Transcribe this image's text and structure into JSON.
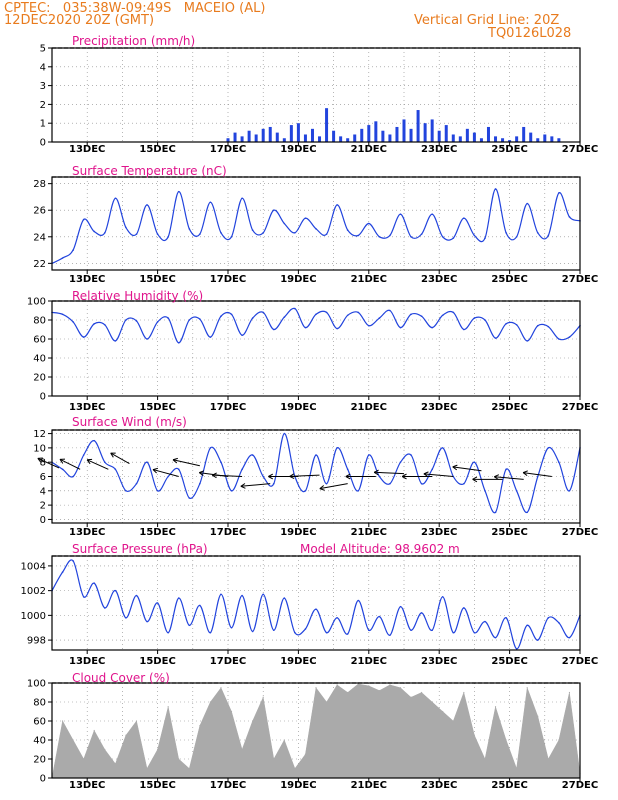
{
  "header": {
    "left_line1": "CPTEC:   035:38W-09:49S   MACEIO (AL)",
    "left_line2": "12DEC2020 20Z (GMT)",
    "right_line1": "Vertical Grid Line: 20Z",
    "right_line2": "TQ0126L028"
  },
  "colors": {
    "header": "#e87b1e",
    "title": "#e0148c",
    "line": "#2244dd",
    "cloud": "#aaaaaa",
    "grid": "#888888"
  },
  "chart_data": [
    {
      "id": "precip",
      "type": "bar",
      "title": "Precipitation (mm/h)",
      "ylim": [
        0,
        5
      ],
      "yticks": [
        "0",
        "1",
        "2",
        "3",
        "4",
        "5"
      ],
      "xticks": [
        "13DEC",
        "15DEC",
        "17DEC",
        "19DEC",
        "21DEC",
        "23DEC",
        "25DEC",
        "27DEC"
      ],
      "x": [
        5.0,
        5.2,
        5.4,
        5.6,
        5.8,
        6.0,
        6.2,
        6.4,
        6.6,
        6.8,
        7.0,
        7.2,
        7.4,
        7.6,
        7.8,
        8.0,
        8.2,
        8.4,
        8.6,
        8.8,
        9.0,
        9.2,
        9.4,
        9.6,
        9.8,
        10.0,
        10.2,
        10.4,
        10.6,
        10.8,
        11.0,
        11.2,
        11.4,
        11.6,
        11.8,
        12.0,
        12.2,
        12.4,
        12.6,
        12.8,
        13.0,
        13.2,
        13.4,
        13.6,
        13.8,
        14.0,
        14.2,
        14.4
      ],
      "values": [
        0.2,
        0.5,
        0.3,
        0.6,
        0.4,
        0.7,
        0.8,
        0.5,
        0.2,
        0.9,
        1.0,
        0.4,
        0.7,
        0.3,
        1.8,
        0.6,
        0.3,
        0.2,
        0.4,
        0.7,
        0.9,
        1.1,
        0.6,
        0.4,
        0.8,
        1.2,
        0.7,
        1.7,
        1.0,
        1.2,
        0.6,
        0.9,
        0.4,
        0.3,
        0.7,
        0.5,
        0.2,
        0.8,
        0.3,
        0.2,
        0.1,
        0.3,
        0.8,
        0.5,
        0.2,
        0.4,
        0.3,
        0.2
      ]
    },
    {
      "id": "temp",
      "type": "line",
      "title": "Surface Temperature (nC)",
      "ylim": [
        21.5,
        28.5
      ],
      "yticks": [
        "22",
        "24",
        "26",
        "28"
      ],
      "xticks": [
        "13DEC",
        "15DEC",
        "17DEC",
        "19DEC",
        "21DEC",
        "23DEC",
        "25DEC",
        "27DEC"
      ],
      "x": [
        0,
        0.3,
        0.6,
        0.9,
        1.2,
        1.5,
        1.8,
        2.1,
        2.4,
        2.7,
        3.0,
        3.3,
        3.6,
        3.9,
        4.2,
        4.5,
        4.8,
        5.1,
        5.4,
        5.7,
        6.0,
        6.3,
        6.6,
        6.9,
        7.2,
        7.5,
        7.8,
        8.1,
        8.4,
        8.7,
        9.0,
        9.3,
        9.6,
        9.9,
        10.2,
        10.5,
        10.8,
        11.1,
        11.4,
        11.7,
        12.0,
        12.3,
        12.6,
        12.9,
        13.2,
        13.5,
        13.8,
        14.1,
        14.4,
        14.7,
        15.0
      ],
      "values": [
        22.0,
        22.4,
        23.0,
        25.3,
        24.4,
        24.3,
        26.9,
        24.7,
        24.2,
        26.4,
        24.2,
        24.0,
        27.4,
        24.6,
        24.2,
        26.6,
        24.3,
        24.0,
        26.9,
        24.5,
        24.3,
        26.0,
        25.0,
        24.3,
        25.4,
        24.6,
        24.2,
        26.4,
        24.5,
        24.1,
        25.0,
        24.0,
        24.1,
        25.7,
        24.0,
        24.2,
        25.7,
        24.0,
        23.9,
        25.4,
        24.1,
        23.9,
        27.6,
        24.3,
        24.0,
        26.5,
        24.3,
        24.1,
        27.3,
        25.5,
        25.2
      ]
    },
    {
      "id": "rh",
      "type": "line",
      "title": "Relative Humidity (%)",
      "ylim": [
        0,
        100
      ],
      "yticks": [
        "0",
        "20",
        "40",
        "60",
        "80",
        "100"
      ],
      "xticks": [
        "13DEC",
        "15DEC",
        "17DEC",
        "19DEC",
        "21DEC",
        "23DEC",
        "25DEC",
        "27DEC"
      ],
      "x": [
        0,
        0.3,
        0.6,
        0.9,
        1.2,
        1.5,
        1.8,
        2.1,
        2.4,
        2.7,
        3.0,
        3.3,
        3.6,
        3.9,
        4.2,
        4.5,
        4.8,
        5.1,
        5.4,
        5.7,
        6.0,
        6.3,
        6.6,
        6.9,
        7.2,
        7.5,
        7.8,
        8.1,
        8.4,
        8.7,
        9.0,
        9.3,
        9.6,
        9.9,
        10.2,
        10.5,
        10.8,
        11.1,
        11.4,
        11.7,
        12.0,
        12.3,
        12.6,
        12.9,
        13.2,
        13.5,
        13.8,
        14.1,
        14.4,
        14.7,
        15.0
      ],
      "values": [
        88,
        86,
        78,
        62,
        76,
        75,
        58,
        80,
        79,
        60,
        78,
        82,
        56,
        80,
        81,
        62,
        84,
        86,
        64,
        82,
        88,
        70,
        83,
        92,
        72,
        86,
        88,
        71,
        85,
        88,
        74,
        82,
        90,
        72,
        86,
        84,
        72,
        85,
        88,
        70,
        82,
        80,
        61,
        76,
        75,
        58,
        74,
        73,
        60,
        62,
        74
      ]
    },
    {
      "id": "wind",
      "type": "line",
      "title": "Surface Wind (m/s)",
      "ylim": [
        -0.5,
        12.5
      ],
      "yticks": [
        "0",
        "2",
        "4",
        "6",
        "8",
        "10",
        "12"
      ],
      "xticks": [
        "13DEC",
        "15DEC",
        "17DEC",
        "19DEC",
        "21DEC",
        "23DEC",
        "25DEC",
        "27DEC"
      ],
      "x": [
        0,
        0.3,
        0.6,
        0.9,
        1.2,
        1.5,
        1.8,
        2.1,
        2.4,
        2.7,
        3.0,
        3.3,
        3.6,
        3.9,
        4.2,
        4.5,
        4.8,
        5.1,
        5.4,
        5.7,
        6.0,
        6.3,
        6.6,
        6.9,
        7.2,
        7.5,
        7.8,
        8.1,
        8.4,
        8.7,
        9.0,
        9.3,
        9.6,
        9.9,
        10.2,
        10.5,
        10.8,
        11.1,
        11.4,
        11.7,
        12.0,
        12.3,
        12.6,
        12.9,
        13.2,
        13.5,
        13.8,
        14.1,
        14.4,
        14.7,
        15.0
      ],
      "values": [
        8,
        7,
        6,
        9,
        11,
        8,
        7,
        4,
        5,
        8,
        4,
        6,
        7,
        3,
        5,
        10,
        8,
        4,
        7,
        9,
        6,
        5,
        12,
        6,
        4,
        9,
        5,
        10,
        7,
        4,
        9,
        6,
        5,
        8,
        9,
        5,
        7,
        10,
        6,
        5,
        8,
        4,
        1,
        7,
        4,
        1,
        6,
        10,
        8,
        4,
        10
      ],
      "arrows": [
        {
          "x": 0.2,
          "y": 7.2,
          "dx": -1,
          "dy": 1
        },
        {
          "x": 0.8,
          "y": 7.0,
          "dx": -1,
          "dy": 1.1
        },
        {
          "x": 1.6,
          "y": 7.0,
          "dx": -1,
          "dy": 1
        },
        {
          "x": 2.2,
          "y": 7.8,
          "dx": -0.8,
          "dy": 1
        },
        {
          "x": 3.6,
          "y": 6.0,
          "dx": -1,
          "dy": 0.6
        },
        {
          "x": 4.2,
          "y": 7.5,
          "dx": -1,
          "dy": 0.5
        },
        {
          "x": 5.0,
          "y": 6.0,
          "dx": -1,
          "dy": 0.3
        },
        {
          "x": 5.4,
          "y": 6.0,
          "dx": -1,
          "dy": 0.1
        },
        {
          "x": 6.2,
          "y": 5.0,
          "dx": -1,
          "dy": -0.2
        },
        {
          "x": 7.0,
          "y": 6.0,
          "dx": -1,
          "dy": 0.0
        },
        {
          "x": 7.6,
          "y": 6.2,
          "dx": -1,
          "dy": -0.1
        },
        {
          "x": 8.4,
          "y": 5.0,
          "dx": -1,
          "dy": -0.4
        },
        {
          "x": 9.2,
          "y": 6.0,
          "dx": -1,
          "dy": 0.0
        },
        {
          "x": 10.0,
          "y": 6.4,
          "dx": -1,
          "dy": 0.1
        },
        {
          "x": 10.8,
          "y": 6.0,
          "dx": -1,
          "dy": 0.0
        },
        {
          "x": 11.4,
          "y": 6.0,
          "dx": -1,
          "dy": 0.2
        },
        {
          "x": 12.2,
          "y": 6.8,
          "dx": -1,
          "dy": 0.3
        },
        {
          "x": 12.8,
          "y": 5.6,
          "dx": -1,
          "dy": 0.0
        },
        {
          "x": 13.4,
          "y": 5.6,
          "dx": -1,
          "dy": 0.2
        },
        {
          "x": 14.2,
          "y": 6.0,
          "dx": -1,
          "dy": 0.3
        }
      ]
    },
    {
      "id": "press",
      "type": "line",
      "title": "Surface Pressure (hPa)",
      "annotation": "Model Altitude: 98.9602 m",
      "ylim": [
        997.2,
        1004.8
      ],
      "yticks": [
        "998",
        "1000",
        "1002",
        "1004"
      ],
      "xticks": [
        "13DEC",
        "15DEC",
        "17DEC",
        "19DEC",
        "21DEC",
        "23DEC",
        "25DEC",
        "27DEC"
      ],
      "x": [
        0,
        0.3,
        0.6,
        0.9,
        1.2,
        1.5,
        1.8,
        2.1,
        2.4,
        2.7,
        3.0,
        3.3,
        3.6,
        3.9,
        4.2,
        4.5,
        4.8,
        5.1,
        5.4,
        5.7,
        6.0,
        6.3,
        6.6,
        6.9,
        7.2,
        7.5,
        7.8,
        8.1,
        8.4,
        8.7,
        9.0,
        9.3,
        9.6,
        9.9,
        10.2,
        10.5,
        10.8,
        11.1,
        11.4,
        11.7,
        12.0,
        12.3,
        12.6,
        12.9,
        13.2,
        13.5,
        13.8,
        14.1,
        14.4,
        14.7,
        15.0
      ],
      "values": [
        1002,
        1003.5,
        1004.4,
        1001.5,
        1002.6,
        1000.6,
        1002,
        999.8,
        1001.6,
        999.5,
        1001,
        998.6,
        1001.4,
        999.2,
        1000.8,
        998.6,
        1001.7,
        999,
        1001.6,
        998.7,
        1001.7,
        998.8,
        1001.4,
        998.6,
        998.9,
        1000.5,
        998.6,
        999.8,
        998.5,
        1001.2,
        998.8,
        999.9,
        998.4,
        1000.7,
        998.8,
        1000.2,
        998.8,
        1001.5,
        998.6,
        1000.6,
        998.6,
        999.5,
        998.2,
        999.8,
        997.3,
        999.2,
        998,
        999.8,
        999.4,
        998.2,
        1000
      ]
    },
    {
      "id": "cloud",
      "type": "area",
      "title": "Cloud Cover (%)",
      "ylim": [
        0,
        100
      ],
      "yticks": [
        "0",
        "20",
        "40",
        "60",
        "80",
        "100"
      ],
      "xticks": [
        "13DEC",
        "15DEC",
        "17DEC",
        "19DEC",
        "21DEC",
        "23DEC",
        "25DEC",
        "27DEC"
      ],
      "x": [
        0,
        0.3,
        0.6,
        0.9,
        1.2,
        1.5,
        1.8,
        2.1,
        2.4,
        2.7,
        3.0,
        3.3,
        3.6,
        3.9,
        4.2,
        4.5,
        4.8,
        5.1,
        5.4,
        5.7,
        6.0,
        6.3,
        6.6,
        6.9,
        7.2,
        7.5,
        7.8,
        8.1,
        8.4,
        8.7,
        9.0,
        9.3,
        9.6,
        9.9,
        10.2,
        10.5,
        10.8,
        11.1,
        11.4,
        11.7,
        12.0,
        12.3,
        12.6,
        12.9,
        13.2,
        13.5,
        13.8,
        14.1,
        14.4,
        14.7,
        15.0
      ],
      "values": [
        0,
        60,
        40,
        20,
        50,
        30,
        15,
        45,
        60,
        10,
        30,
        75,
        20,
        10,
        55,
        80,
        95,
        70,
        30,
        60,
        85,
        20,
        40,
        10,
        25,
        95,
        80,
        98,
        90,
        99,
        97,
        92,
        98,
        95,
        85,
        90,
        80,
        70,
        60,
        90,
        45,
        20,
        75,
        40,
        10,
        95,
        65,
        20,
        40,
        90,
        5
      ]
    }
  ]
}
